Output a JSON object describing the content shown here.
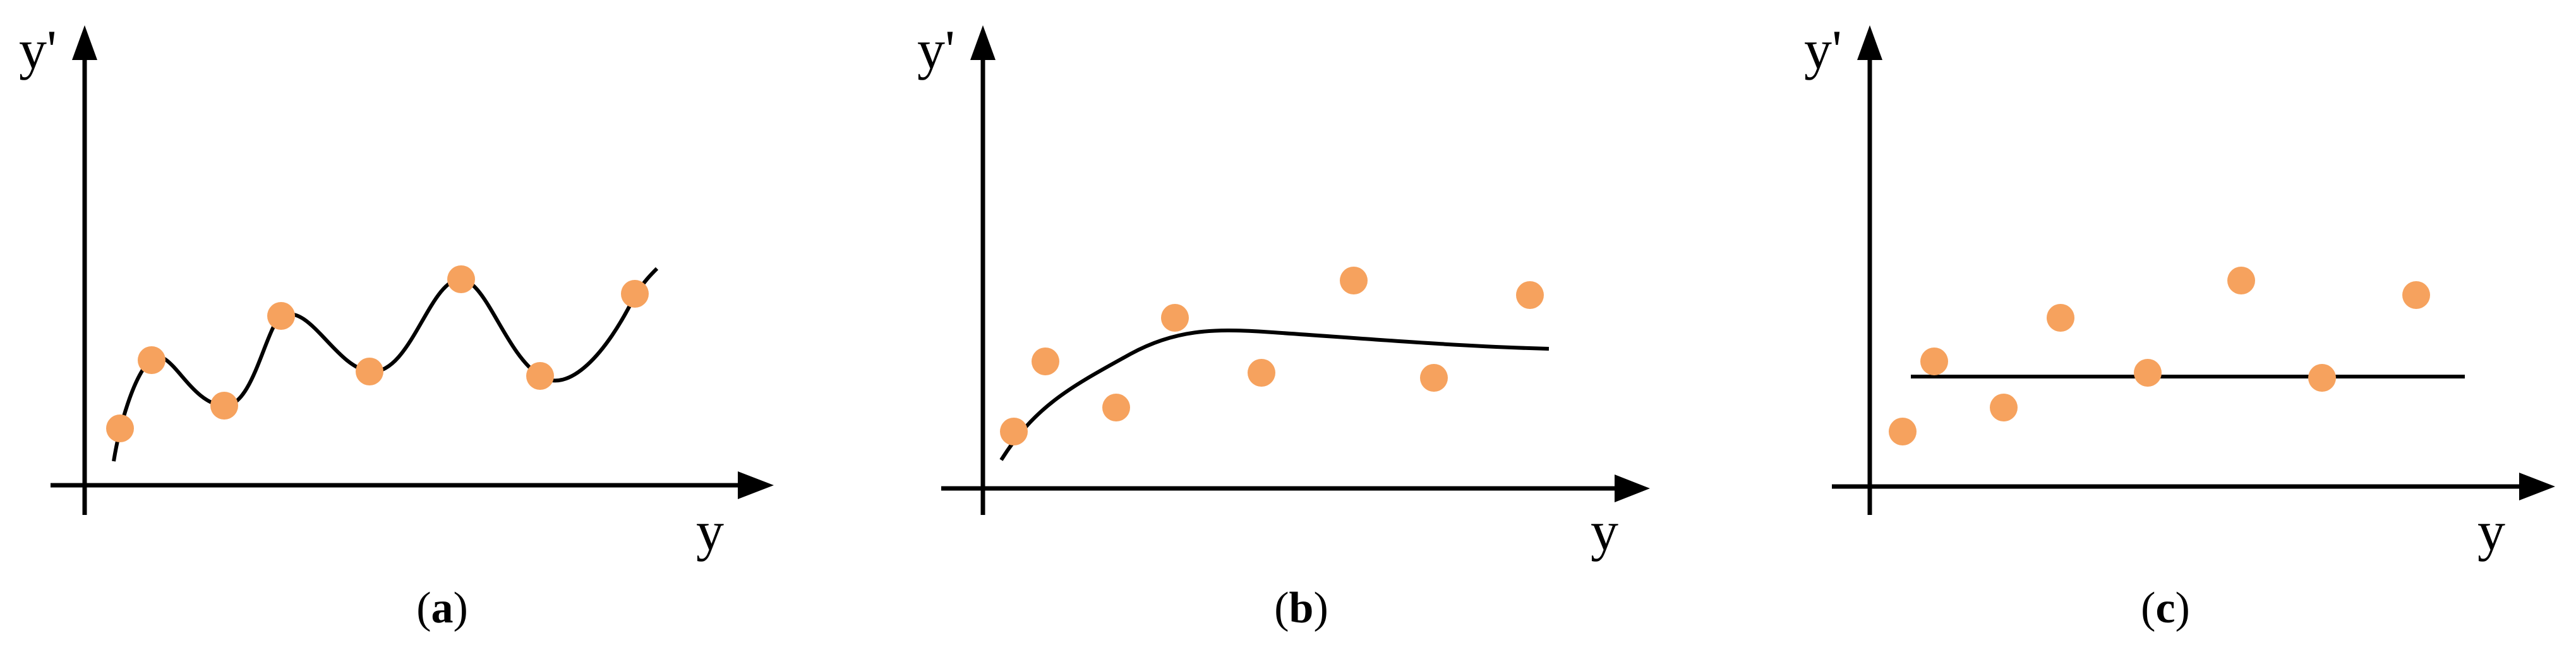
{
  "colors": {
    "point": "#F6A25E",
    "line": "#000000",
    "background": "#ffffff"
  },
  "panels": [
    {
      "id": "a",
      "y_axis_label": "y'",
      "x_axis_label": "y",
      "caption_open": "(",
      "caption_letter": "a",
      "caption_close": ")",
      "fit_type": "interpolating-curve"
    },
    {
      "id": "b",
      "y_axis_label": "y'",
      "x_axis_label": "y",
      "caption_open": "(",
      "caption_letter": "b",
      "caption_close": ")",
      "fit_type": "smooth-regression-curve"
    },
    {
      "id": "c",
      "y_axis_label": "y'",
      "x_axis_label": "y",
      "caption_open": "(",
      "caption_letter": "c",
      "caption_close": ")",
      "fit_type": "constant-line"
    }
  ]
}
